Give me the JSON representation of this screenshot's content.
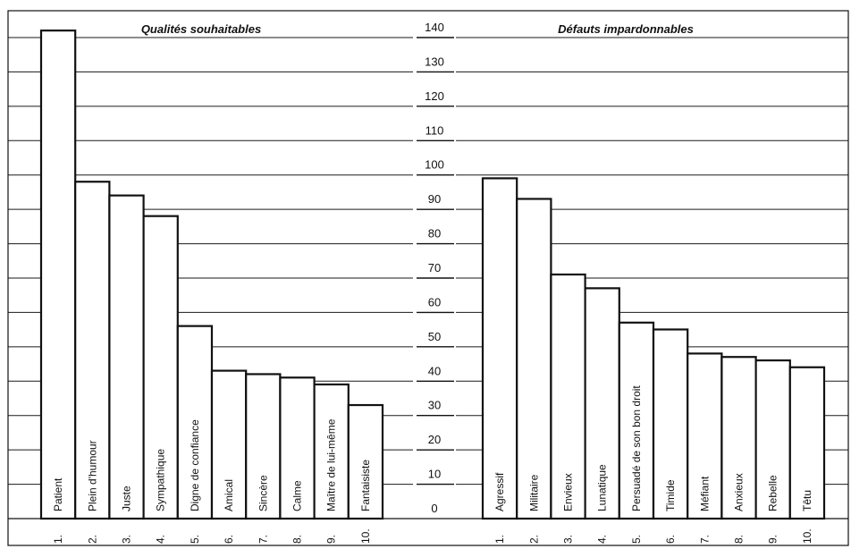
{
  "chart_data": {
    "type": "bar",
    "ylim": [
      0,
      140
    ],
    "yticks": [
      0,
      10,
      20,
      30,
      40,
      50,
      60,
      70,
      80,
      90,
      100,
      110,
      120,
      130,
      140
    ],
    "panels": [
      {
        "title": "Qualités souhaitables",
        "ranks": [
          "1.",
          "2.",
          "3.",
          "4.",
          "5.",
          "6.",
          "7.",
          "8.",
          "9.",
          "10."
        ],
        "categories": [
          "Patient",
          "Plein d'humour",
          "Juste",
          "Sympathique",
          "Digne de confiance",
          "Amical",
          "Sincère",
          "Calme",
          "Maître de lui-même",
          "Fantaisiste"
        ],
        "values": [
          141,
          97,
          93,
          87,
          55,
          42,
          41,
          40,
          38,
          32
        ]
      },
      {
        "title": "Défauts impardonnables",
        "ranks": [
          "1.",
          "2.",
          "3.",
          "4.",
          "5.",
          "6.",
          "7.",
          "8.",
          "9.",
          "10."
        ],
        "categories": [
          "Agressif",
          "Militaire",
          "Envieux",
          "Lunatique",
          "Persuadé de son bon droit",
          "Timide",
          "Méfiant",
          "Anxieux",
          "Rebelle",
          "Têtu"
        ],
        "values": [
          98,
          92,
          70,
          66,
          56,
          54,
          47,
          46,
          45,
          43
        ]
      }
    ]
  }
}
